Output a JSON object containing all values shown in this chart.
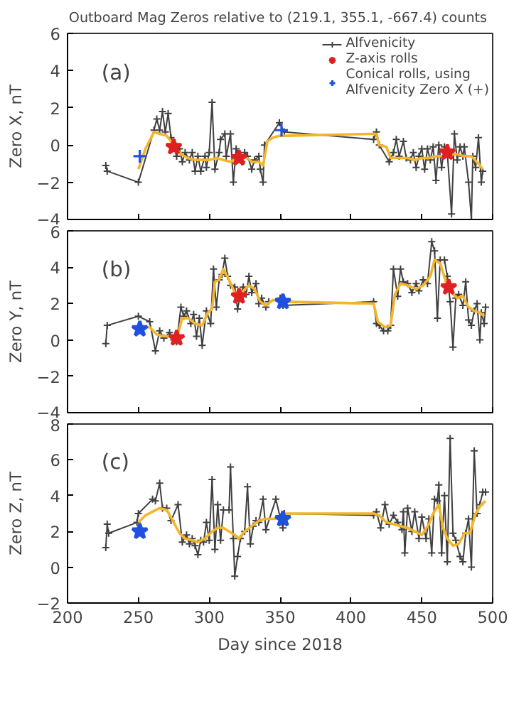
{
  "chart_data": [
    {
      "type": "line",
      "title": "Outboard Mag Zeros relative to (219.1, 355.1,  -667.4) counts",
      "ylabel": "Zero X, nT",
      "annotations": [
        "(a)"
      ],
      "xlim": [
        200,
        500
      ],
      "xticks": [
        200,
        250,
        300,
        350,
        400,
        450,
        500
      ],
      "ylim": [
        -4,
        6
      ],
      "yticks": [
        -4,
        -2,
        0,
        2,
        4,
        6
      ],
      "tick_labels": "y",
      "legend": "top right",
      "series": [
        {
          "name": "Alfvenicity",
          "marker": "cross",
          "color": "#404040",
          "x": [
            227,
            228,
            250,
            261,
            263,
            265,
            267,
            269,
            271,
            273,
            275,
            277,
            279,
            281,
            283,
            286,
            288,
            290,
            292,
            294,
            297,
            298,
            300,
            302,
            304,
            307,
            308,
            311,
            312,
            315,
            317,
            319,
            321,
            323,
            325,
            327,
            330,
            332,
            335,
            336,
            338,
            339,
            349.5,
            353,
            416,
            418,
            420,
            427,
            430,
            432,
            434,
            437,
            439,
            442,
            444,
            446,
            448,
            450,
            452,
            454,
            456,
            458,
            460,
            462,
            464,
            466,
            468,
            471,
            473,
            475,
            477,
            479,
            480,
            483,
            485,
            486,
            488,
            490,
            492,
            493
          ],
          "values": [
            -1.1,
            -1.4,
            -2.0,
            0.8,
            1.4,
            0.8,
            1.8,
            0.7,
            1.7,
            0.4,
            -0.1,
            -0.6,
            -0.2,
            -0.9,
            -0.4,
            -0.8,
            -0.4,
            -1.4,
            -0.6,
            -1.4,
            -0.6,
            -1.2,
            -0.4,
            2.3,
            -1.3,
            -0.4,
            0.3,
            0.6,
            -0.6,
            0.6,
            -2.0,
            -0.2,
            -0.7,
            -0.9,
            -0.4,
            -0.6,
            -1.3,
            -0.8,
            -0.6,
            -1.3,
            -2.0,
            0.0,
            1.2,
            0.7,
            0.3,
            0.7,
            0.0,
            -0.9,
            -0.4,
            0.3,
            -0.6,
            0.2,
            -0.7,
            -0.8,
            -0.4,
            -1.2,
            -0.6,
            -0.2,
            -1.3,
            -0.2,
            -0.8,
            -0.1,
            -1.9,
            0.0,
            -1.2,
            -0.1,
            -0.4,
            -3.7,
            0.6,
            -0.8,
            -0.1,
            -0.6,
            -0.1,
            -2.0,
            -4.0,
            -0.6,
            -1.2,
            0.4,
            -2.0,
            -1.4
          ]
        },
        {
          "marker": "none",
          "color": "#f5b52a",
          "x": [
            250,
            255,
            261,
            265,
            270,
            275,
            280,
            285,
            290,
            295,
            300,
            305,
            310,
            315,
            320,
            325,
            330,
            335,
            338,
            341,
            345,
            350,
            355,
            415,
            418,
            420,
            425,
            428,
            435,
            440,
            445,
            450,
            455,
            460,
            465,
            470,
            475,
            480,
            485,
            490,
            493
          ],
          "values": [
            -1.3,
            -0.2,
            0.7,
            0.6,
            0.5,
            0.0,
            -0.5,
            -0.7,
            -0.8,
            -0.8,
            -0.8,
            -0.7,
            -0.8,
            -0.9,
            -0.7,
            -0.6,
            -0.9,
            -0.9,
            -1.1,
            0.2,
            0.4,
            0.5,
            0.5,
            0.6,
            0.6,
            0.0,
            -0.1,
            -0.7,
            -0.7,
            -0.7,
            -0.8,
            -0.7,
            -0.7,
            -0.6,
            -0.6,
            -0.5,
            -0.5,
            -0.6,
            -0.6,
            -1.0,
            -1.3
          ]
        },
        {
          "name": "Z-axis rolls",
          "type": "scatter",
          "marker": "star",
          "color": "#e02020",
          "x": [
            275,
            321,
            468
          ],
          "values": [
            -0.1,
            -0.7,
            -0.4
          ]
        },
        {
          "name": "Conical rolls, using\nAlfvenicity Zero X (+)",
          "type": "scatter",
          "marker": "cross",
          "color": "#2050e0",
          "x": [
            251,
            351
          ],
          "values": [
            -0.6,
            0.8
          ]
        }
      ]
    },
    {
      "type": "line",
      "ylabel": "Zero Y, nT",
      "annotations": [
        "(b)"
      ],
      "xlim": [
        200,
        500
      ],
      "xticks": [
        200,
        250,
        300,
        350,
        400,
        450,
        500
      ],
      "ylim": [
        -4,
        6
      ],
      "yticks": [
        -4,
        -2,
        0,
        2,
        4,
        6
      ],
      "tick_labels": "y",
      "series": [
        {
          "marker": "cross",
          "color": "#404040",
          "x": [
            227,
            228,
            250,
            258,
            262,
            265,
            268,
            272,
            275,
            277,
            280,
            282,
            284,
            287,
            289,
            291,
            293,
            295,
            298,
            301,
            303,
            305,
            307,
            309,
            311,
            313,
            315,
            318,
            320,
            322,
            324,
            326,
            328,
            330,
            333,
            335,
            337,
            340,
            342,
            350,
            352,
            416,
            418,
            420,
            423,
            426,
            428,
            430,
            433,
            435,
            437,
            440,
            443,
            446,
            448,
            451,
            454,
            457,
            459,
            461,
            463,
            466,
            468,
            470,
            472,
            474,
            476,
            479,
            481,
            483,
            485,
            487,
            489,
            491,
            492,
            494,
            495
          ],
          "values": [
            -0.2,
            0.8,
            1.3,
            1.0,
            -0.6,
            0.5,
            0.1,
            0.4,
            0.0,
            -0.1,
            1.8,
            1.3,
            1.6,
            0.9,
            1.4,
            0.2,
            1.2,
            -0.3,
            1.6,
            0.9,
            3.9,
            1.8,
            3.3,
            3.6,
            4.5,
            3.5,
            3.0,
            2.9,
            1.7,
            2.5,
            2.9,
            2.5,
            3.5,
            2.6,
            3.1,
            2.0,
            2.3,
            1.8,
            2.1,
            2.3,
            1.9,
            2.1,
            0.9,
            0.8,
            0.5,
            0.5,
            0.8,
            3.9,
            2.4,
            3.9,
            3.2,
            3.1,
            2.6,
            3.1,
            2.7,
            3.3,
            3.1,
            5.4,
            4.9,
            1.2,
            4.4,
            4.4,
            3.5,
            2.1,
            -0.4,
            2.3,
            2.5,
            1.9,
            3.2,
            1.1,
            0.8,
            1.6,
            2.0,
            0.0,
            1.5,
            0.9,
            1.8
          ]
        },
        {
          "marker": "none",
          "color": "#f5b52a",
          "x": [
            250,
            258,
            263,
            268,
            273,
            277,
            281,
            285,
            290,
            295,
            299,
            302,
            304,
            307,
            310,
            314,
            318,
            320,
            324,
            328,
            332,
            336,
            340,
            345,
            352,
            416,
            419,
            424,
            428,
            431,
            435,
            440,
            446,
            451,
            456,
            459,
            463,
            467,
            471,
            475,
            479,
            483,
            487,
            491,
            494
          ],
          "values": [
            0.7,
            0.7,
            0.3,
            0.2,
            0.2,
            0.1,
            1.2,
            1.2,
            0.9,
            0.8,
            1.5,
            1.7,
            3.2,
            3.3,
            3.9,
            3.3,
            2.6,
            2.3,
            2.7,
            3.0,
            2.8,
            2.1,
            1.9,
            2.2,
            2.1,
            2.0,
            1.0,
            0.7,
            0.8,
            2.5,
            3.1,
            3.0,
            2.8,
            3.0,
            3.5,
            4.4,
            4.2,
            3.2,
            2.6,
            2.3,
            2.4,
            1.8,
            1.6,
            1.5,
            1.3
          ]
        },
        {
          "type": "scatter",
          "marker": "star",
          "color": "#e02020",
          "x": [
            277,
            321,
            469
          ],
          "values": [
            0.1,
            2.4,
            2.9
          ]
        },
        {
          "type": "scatter",
          "marker": "star",
          "color": "#2050e0",
          "x": [
            251,
            352
          ],
          "values": [
            0.6,
            2.1
          ]
        }
      ]
    },
    {
      "type": "line",
      "ylabel": "Zero Z, nT",
      "xlabel": "Day since 2018",
      "annotations": [
        "(c)"
      ],
      "xlim": [
        200,
        500
      ],
      "xticks": [
        200,
        250,
        300,
        350,
        400,
        450,
        500
      ],
      "ylim": [
        -2,
        8
      ],
      "yticks": [
        -2,
        0,
        2,
        4,
        6,
        8
      ],
      "series": [
        {
          "marker": "cross",
          "color": "#404040",
          "x": [
            227,
            228,
            229,
            249,
            250,
            260,
            262,
            265,
            267,
            270,
            273,
            278,
            281,
            284,
            286,
            288,
            290,
            292,
            294,
            296,
            298,
            300,
            302,
            304,
            306,
            308,
            310,
            314,
            315,
            317,
            318,
            320,
            322,
            325,
            327,
            329,
            331,
            333,
            335,
            338,
            340,
            347,
            350,
            352,
            353,
            416,
            418,
            421,
            424,
            427,
            430,
            433,
            436,
            437,
            438,
            440,
            443,
            445,
            448,
            450,
            453,
            455,
            457,
            459,
            461,
            462,
            464,
            466,
            468,
            470,
            472,
            474,
            477,
            479,
            481,
            483,
            485,
            487,
            489,
            491,
            493,
            495
          ],
          "values": [
            1.1,
            2.4,
            1.9,
            2.5,
            3.0,
            3.8,
            3.7,
            4.7,
            3.3,
            3.3,
            2.6,
            3.5,
            1.4,
            1.8,
            1.3,
            1.6,
            1.2,
            0.7,
            1.5,
            1.4,
            2.5,
            1.5,
            4.9,
            1.0,
            3.5,
            1.5,
            3.2,
            3.2,
            5.6,
            1.6,
            -0.5,
            0.6,
            1.6,
            2.0,
            4.5,
            1.3,
            2.3,
            2.6,
            2.5,
            3.8,
            2.1,
            3.8,
            2.8,
            2.2,
            3.0,
            2.9,
            3.1,
            2.2,
            3.5,
            2.4,
            2.9,
            2.5,
            2.1,
            3.1,
            0.8,
            3.3,
            2.0,
            3.1,
            1.6,
            2.8,
            1.6,
            2.7,
            0.8,
            3.8,
            3.7,
            4.6,
            0.8,
            4.0,
            0.3,
            7.2,
            1.9,
            1.5,
            0.6,
            0.3,
            1.9,
            2.7,
            0.0,
            6.5,
            3.0,
            3.5,
            4.2,
            4.2
          ]
        },
        {
          "marker": "none",
          "color": "#f5b52a",
          "x": [
            250,
            255,
            260,
            265,
            270,
            275,
            279,
            283,
            288,
            292,
            297,
            302,
            306,
            310,
            314,
            318,
            321,
            325,
            330,
            335,
            340,
            345,
            350,
            353,
            416,
            420,
            425,
            430,
            435,
            440,
            445,
            450,
            455,
            458,
            462,
            465,
            468,
            472,
            476,
            480,
            484,
            488,
            492,
            495
          ],
          "values": [
            2.5,
            2.9,
            3.1,
            3.3,
            3.2,
            2.5,
            1.9,
            1.6,
            1.5,
            1.4,
            1.6,
            2.0,
            2.2,
            2.2,
            2.0,
            1.8,
            1.6,
            2.0,
            2.3,
            2.6,
            2.7,
            2.7,
            2.7,
            3.0,
            3.0,
            2.9,
            2.5,
            2.4,
            2.3,
            2.2,
            2.0,
            1.8,
            2.4,
            3.0,
            3.5,
            2.2,
            1.6,
            1.2,
            1.3,
            1.9,
            1.9,
            3.0,
            3.5,
            3.7
          ]
        },
        {
          "type": "scatter",
          "marker": "star",
          "color": "#2050e0",
          "x": [
            251,
            352
          ],
          "values": [
            2.0,
            2.7
          ]
        }
      ]
    }
  ]
}
